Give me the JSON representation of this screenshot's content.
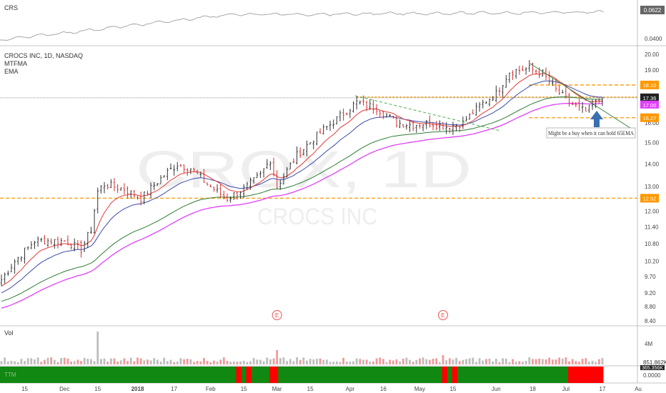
{
  "colors": {
    "up": "#333333",
    "down": "#d32f2f",
    "ma_fast": "#e53935",
    "ma_mid": "#3949ab",
    "ma_slow": "#2e7d32",
    "ema": "#e040fb",
    "crs": "#9e9e9e",
    "orange": "#ff9800",
    "vol_up": "#bdbdbd",
    "vol_down": "#ef9a9a",
    "green_band": "#118811",
    "red_band": "#ff0000",
    "arrow": "#3a6fb0",
    "watermark": "#e6e6e6"
  },
  "panes": {
    "crs": {
      "title": "CRS",
      "current_value": "0.0622",
      "tick_labels": [
        "0.0400"
      ]
    },
    "price": {
      "title": "CROCS INC, 1D, NASDAQ",
      "indicators": [
        "MTFMA",
        "EMA"
      ],
      "watermark_symbol": "CROX, 1D",
      "watermark_name": "CROCS INC",
      "last_price": "17.36",
      "ema_value": "17.00",
      "price_levels": [
        {
          "value": 18.1,
          "label": "18.10"
        },
        {
          "value": 16.27,
          "label": "16.27"
        },
        {
          "value": 12.52,
          "label": "12.52"
        }
      ],
      "annotation": "Might be a buy when it can hold 65EMA",
      "earnings_marker": "E"
    },
    "volume": {
      "title": "Vol",
      "tick_labels": [
        "4M"
      ],
      "current_value": "851.862K",
      "secondary_value": "365.356K"
    },
    "band": {
      "title": "TTM",
      "tick_label": "0.0000"
    }
  },
  "chart_data": {
    "type": "candlestick",
    "x_tick_labels": [
      "15",
      "Dec",
      "15",
      "2018",
      "17",
      "Feb",
      "15",
      "Mar",
      "15",
      "Apr",
      "16",
      "May",
      "15",
      "Jun",
      "18",
      "Jul",
      "17",
      "Au"
    ],
    "y_tick_labels": [
      "20.00",
      "19.00",
      "18.00",
      "17.00",
      "16.00",
      "15.00",
      "14.00",
      "13.00",
      "12.00",
      "11.40",
      "10.80",
      "10.20",
      "9.70",
      "9.20",
      "8.80",
      "8.40"
    ],
    "ylim": [
      8.4,
      20.0
    ],
    "y_scale": "log",
    "price_anchors": [
      {
        "date": "2017-11-06",
        "close": 9.6
      },
      {
        "date": "2017-11-10",
        "close": 10.2
      },
      {
        "date": "2017-11-20",
        "close": 10.9
      },
      {
        "date": "2017-12-01",
        "close": 10.9
      },
      {
        "date": "2017-12-08",
        "close": 10.6
      },
      {
        "date": "2017-12-13",
        "close": 11.3
      },
      {
        "date": "2017-12-15",
        "close": 12.8
      },
      {
        "date": "2017-12-19",
        "close": 13.1
      },
      {
        "date": "2017-12-27",
        "close": 12.9
      },
      {
        "date": "2018-01-03",
        "close": 12.5
      },
      {
        "date": "2018-01-12",
        "close": 13.5
      },
      {
        "date": "2018-01-18",
        "close": 14.0
      },
      {
        "date": "2018-01-24",
        "close": 13.8
      },
      {
        "date": "2018-01-31",
        "close": 13.1
      },
      {
        "date": "2018-02-08",
        "close": 12.5
      },
      {
        "date": "2018-02-16",
        "close": 13.0
      },
      {
        "date": "2018-02-22",
        "close": 13.5
      },
      {
        "date": "2018-02-27",
        "close": 14.2
      },
      {
        "date": "2018-03-01",
        "close": 13.0
      },
      {
        "date": "2018-03-09",
        "close": 14.4
      },
      {
        "date": "2018-03-20",
        "close": 15.5
      },
      {
        "date": "2018-03-29",
        "close": 16.5
      },
      {
        "date": "2018-04-04",
        "close": 17.1
      },
      {
        "date": "2018-04-12",
        "close": 16.8
      },
      {
        "date": "2018-04-20",
        "close": 16.0
      },
      {
        "date": "2018-04-27",
        "close": 15.9
      },
      {
        "date": "2018-05-04",
        "close": 16.0
      },
      {
        "date": "2018-05-11",
        "close": 15.8
      },
      {
        "date": "2018-05-18",
        "close": 16.0
      },
      {
        "date": "2018-05-25",
        "close": 16.9
      },
      {
        "date": "2018-06-01",
        "close": 17.6
      },
      {
        "date": "2018-06-07",
        "close": 18.9
      },
      {
        "date": "2018-06-15",
        "close": 19.1
      },
      {
        "date": "2018-06-21",
        "close": 18.8
      },
      {
        "date": "2018-06-27",
        "close": 17.8
      },
      {
        "date": "2018-07-03",
        "close": 17.1
      },
      {
        "date": "2018-07-10",
        "close": 16.6
      },
      {
        "date": "2018-07-17",
        "close": 17.36
      }
    ],
    "band_red_dates": [
      [
        "2018-02-13",
        "2018-02-14"
      ],
      [
        "2018-02-16",
        "2018-02-19"
      ],
      [
        "2018-02-27",
        "2018-03-01"
      ],
      [
        "2018-05-10",
        "2018-05-11"
      ],
      [
        "2018-05-15",
        "2018-05-16"
      ],
      [
        "2018-07-03",
        "2018-07-17"
      ]
    ],
    "earnings_dates": [
      "2018-03-01",
      "2018-05-10"
    ]
  }
}
